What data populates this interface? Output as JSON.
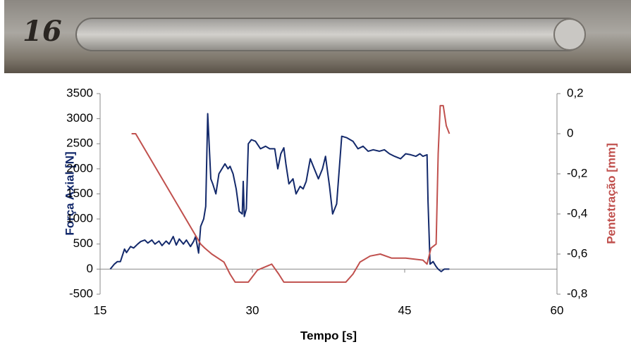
{
  "chart_data": {
    "type": "line",
    "annotation": "16",
    "x_label": "Tempo [s]",
    "y_label": "Força Axial [N]",
    "y2_label": "Pentetração [mm]",
    "xlim": [
      15,
      60
    ],
    "xticks": [
      15,
      30,
      45,
      60
    ],
    "ylim": [
      -500,
      3500
    ],
    "yticks": [
      -500,
      0,
      500,
      1000,
      1500,
      2000,
      2500,
      3000,
      3500
    ],
    "y2lim": [
      -0.8,
      0.2
    ],
    "y2ticks": [
      {
        "value": -0.8,
        "label": "-0,8"
      },
      {
        "value": -0.6,
        "label": "-0,6"
      },
      {
        "value": -0.4,
        "label": "-0,4"
      },
      {
        "value": -0.2,
        "label": "-0,2"
      },
      0,
      {
        "value": 0.2,
        "label": "0,2"
      }
    ],
    "series": [
      {
        "name": "Força Axial [N]",
        "color": "#13296b",
        "axis": "y",
        "x": [
          16.0,
          16.4,
          16.7,
          17.0,
          17.4,
          17.6,
          18.0,
          18.3,
          18.7,
          19.0,
          19.4,
          19.7,
          20.1,
          20.4,
          20.8,
          21.1,
          21.5,
          21.8,
          22.2,
          22.5,
          22.8,
          23.2,
          23.5,
          23.9,
          24.2,
          24.4,
          24.7,
          24.9,
          25.2,
          25.4,
          25.6,
          25.9,
          26.1,
          26.4,
          26.7,
          27.0,
          27.3,
          27.6,
          27.8,
          28.1,
          28.4,
          28.7,
          29.0,
          29.1,
          29.2,
          29.4,
          29.6,
          29.9,
          30.3,
          30.8,
          31.3,
          31.7,
          32.2,
          32.5,
          32.8,
          33.1,
          33.3,
          33.6,
          34.0,
          34.3,
          34.7,
          35.0,
          35.3,
          35.7,
          36.1,
          36.5,
          36.9,
          37.2,
          37.6,
          37.9,
          38.3,
          38.8,
          39.3,
          39.9,
          40.4,
          40.9,
          41.4,
          41.9,
          42.5,
          43.0,
          43.5,
          44.0,
          44.6,
          45.1,
          45.6,
          46.1,
          46.5,
          46.8,
          47.2,
          47.3,
          47.5,
          47.8,
          48.1,
          48.3,
          48.6,
          48.9,
          49.4
        ],
        "values": [
          0,
          100,
          150,
          150,
          400,
          330,
          450,
          420,
          500,
          550,
          580,
          520,
          580,
          500,
          560,
          470,
          560,
          500,
          650,
          480,
          600,
          500,
          580,
          450,
          550,
          650,
          320,
          850,
          1000,
          1250,
          3100,
          1800,
          1700,
          1500,
          1900,
          2000,
          2100,
          2000,
          2050,
          1900,
          1600,
          1150,
          1100,
          1750,
          1050,
          1200,
          2500,
          2580,
          2550,
          2400,
          2450,
          2400,
          2400,
          2000,
          2300,
          2420,
          2100,
          1700,
          1800,
          1500,
          1650,
          1600,
          1750,
          2200,
          2000,
          1800,
          2000,
          2250,
          1650,
          1100,
          1300,
          2650,
          2620,
          2550,
          2400,
          2450,
          2350,
          2380,
          2350,
          2380,
          2300,
          2250,
          2200,
          2300,
          2280,
          2250,
          2300,
          2250,
          2280,
          1350,
          100,
          150,
          50,
          0,
          -50,
          0,
          0
        ]
      },
      {
        "name": "Pentetração [mm]",
        "color": "#c0504d",
        "axis": "y2",
        "x": [
          18.1,
          18.5,
          24.2,
          24.9,
          25.3,
          26.0,
          27.2,
          27.8,
          28.3,
          29.6,
          30.5,
          31.9,
          32.6,
          33.1,
          39.2,
          39.9,
          40.6,
          41.6,
          42.6,
          43.7,
          45.1,
          46.8,
          47.2,
          47.6,
          48.1,
          48.3,
          48.5,
          48.8,
          49.1,
          49.4
        ],
        "values": [
          0,
          0,
          -0.49,
          -0.55,
          -0.57,
          -0.6,
          -0.64,
          -0.7,
          -0.74,
          -0.74,
          -0.68,
          -0.65,
          -0.7,
          -0.74,
          -0.74,
          -0.7,
          -0.64,
          -0.61,
          -0.6,
          -0.62,
          -0.62,
          -0.63,
          -0.65,
          -0.57,
          -0.55,
          -0.1,
          0.14,
          0.14,
          0.04,
          0
        ]
      }
    ]
  }
}
